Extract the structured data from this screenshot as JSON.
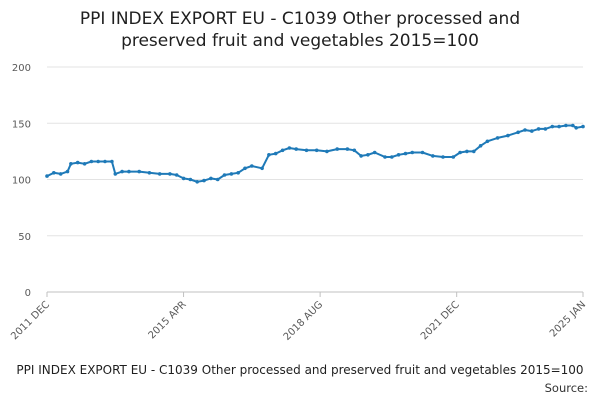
{
  "colors": {
    "series": "#1f7ab8",
    "grid": "#e3e3e3",
    "axis": "#c0c0c0",
    "text": "#1f1f1f"
  },
  "header": {
    "title_line1": "PPI INDEX EXPORT EU - C1039 Other processed and",
    "title_line2": "preserved fruit and vegetables 2015=100"
  },
  "footer": {
    "caption": "PPI INDEX EXPORT EU - C1039 Other processed and preserved fruit and vegetables 2015=100",
    "source_label": "Source:"
  },
  "chart_data": {
    "type": "line",
    "title": "PPI INDEX EXPORT EU - C1039 Other processed and preserved fruit and vegetables 2015=100",
    "xlabel": "",
    "ylabel": "",
    "ylim": [
      0,
      200
    ],
    "yticks": [
      0,
      50,
      100,
      150,
      200
    ],
    "xticks": [
      "2011 DEC",
      "2015 APR",
      "2018 AUG",
      "2021 DEC",
      "2025 JAN"
    ],
    "grid": true,
    "legend": "none",
    "series": [
      {
        "name": "",
        "points": [
          [
            "2011-12",
            103
          ],
          [
            "2012-02",
            106
          ],
          [
            "2012-04",
            105
          ],
          [
            "2012-06",
            107
          ],
          [
            "2012-07",
            114
          ],
          [
            "2012-09",
            115
          ],
          [
            "2012-11",
            114
          ],
          [
            "2013-01",
            116
          ],
          [
            "2013-03",
            116
          ],
          [
            "2013-05",
            116
          ],
          [
            "2013-07",
            116
          ],
          [
            "2013-08",
            105
          ],
          [
            "2013-10",
            107
          ],
          [
            "2013-12",
            107
          ],
          [
            "2014-03",
            107
          ],
          [
            "2014-06",
            106
          ],
          [
            "2014-09",
            105
          ],
          [
            "2014-12",
            105
          ],
          [
            "2015-02",
            104
          ],
          [
            "2015-04",
            101
          ],
          [
            "2015-06",
            100
          ],
          [
            "2015-08",
            98
          ],
          [
            "2015-10",
            99
          ],
          [
            "2015-12",
            101
          ],
          [
            "2016-02",
            100
          ],
          [
            "2016-04",
            104
          ],
          [
            "2016-06",
            105
          ],
          [
            "2016-08",
            106
          ],
          [
            "2016-10",
            110
          ],
          [
            "2016-12",
            112
          ],
          [
            "2017-03",
            110
          ],
          [
            "2017-05",
            122
          ],
          [
            "2017-07",
            123
          ],
          [
            "2017-09",
            126
          ],
          [
            "2017-11",
            128
          ],
          [
            "2018-01",
            127
          ],
          [
            "2018-04",
            126
          ],
          [
            "2018-07",
            126
          ],
          [
            "2018-10",
            125
          ],
          [
            "2019-01",
            127
          ],
          [
            "2019-04",
            127
          ],
          [
            "2019-06",
            126
          ],
          [
            "2019-08",
            121
          ],
          [
            "2019-10",
            122
          ],
          [
            "2019-12",
            124
          ],
          [
            "2020-03",
            120
          ],
          [
            "2020-05",
            120
          ],
          [
            "2020-07",
            122
          ],
          [
            "2020-09",
            123
          ],
          [
            "2020-11",
            124
          ],
          [
            "2021-02",
            124
          ],
          [
            "2021-05",
            121
          ],
          [
            "2021-08",
            120
          ],
          [
            "2021-11",
            120
          ],
          [
            "2022-01",
            124
          ],
          [
            "2022-03",
            125
          ],
          [
            "2022-05",
            125
          ],
          [
            "2022-07",
            130
          ],
          [
            "2022-09",
            134
          ],
          [
            "2022-12",
            137
          ],
          [
            "2023-03",
            139
          ],
          [
            "2023-06",
            142
          ],
          [
            "2023-08",
            144
          ],
          [
            "2023-10",
            143
          ],
          [
            "2023-12",
            145
          ],
          [
            "2024-02",
            145
          ],
          [
            "2024-04",
            147
          ],
          [
            "2024-06",
            147
          ],
          [
            "2024-08",
            148
          ],
          [
            "2024-10",
            148
          ],
          [
            "2024-11",
            146
          ],
          [
            "2025-01",
            147
          ]
        ]
      }
    ]
  }
}
